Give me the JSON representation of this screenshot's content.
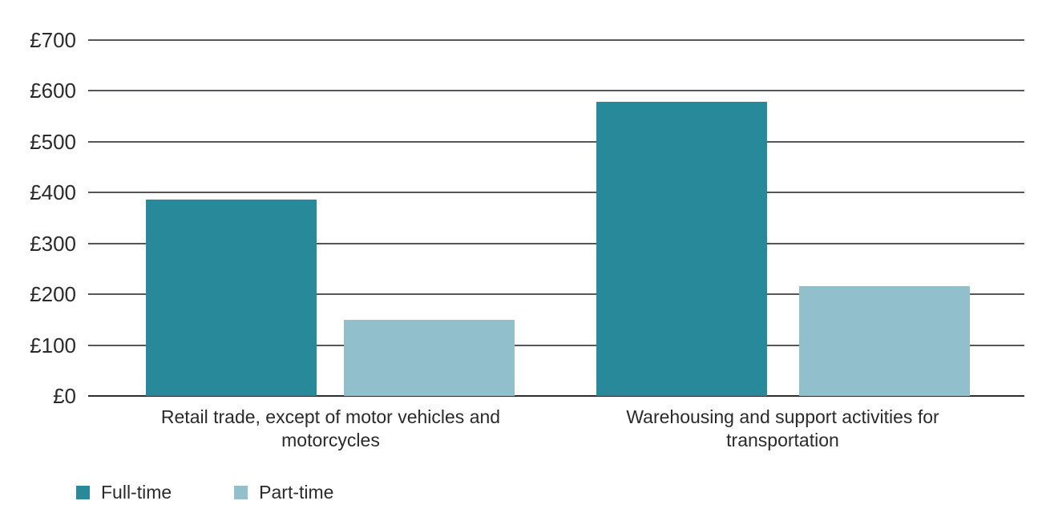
{
  "chart_data": {
    "type": "bar",
    "title": "",
    "xlabel": "",
    "ylabel": "",
    "currency_prefix": "£",
    "categories": [
      "Retail trade, except of motor vehicles and motorcycles",
      "Warehousing and support activities for transportation"
    ],
    "series": [
      {
        "name": "Full-time",
        "color": "#28899B",
        "values": [
          387,
          578
        ]
      },
      {
        "name": "Part-time",
        "color": "#91BFCB",
        "values": [
          150,
          216
        ]
      }
    ],
    "ylim": [
      0,
      700
    ],
    "yticks": [
      {
        "value": 0,
        "label": "£0"
      },
      {
        "value": 100,
        "label": "£100"
      },
      {
        "value": 200,
        "label": "£200"
      },
      {
        "value": 300,
        "label": "£300"
      },
      {
        "value": 400,
        "label": "£400"
      },
      {
        "value": 500,
        "label": "£500"
      },
      {
        "value": 600,
        "label": "£600"
      },
      {
        "value": 700,
        "label": "£700"
      }
    ],
    "grid": true,
    "legend_position": "bottom-left"
  },
  "legend": {
    "items": [
      {
        "label": "Full-time",
        "color": "#28899B"
      },
      {
        "label": "Part-time",
        "color": "#91BFCB"
      }
    ]
  },
  "colors": {
    "background": "#ffffff",
    "gridline": "#55565a",
    "baseline": "#2e2e30",
    "text": "#2a2a2a",
    "full_time": "#28899B",
    "part_time": "#91BFCB"
  }
}
